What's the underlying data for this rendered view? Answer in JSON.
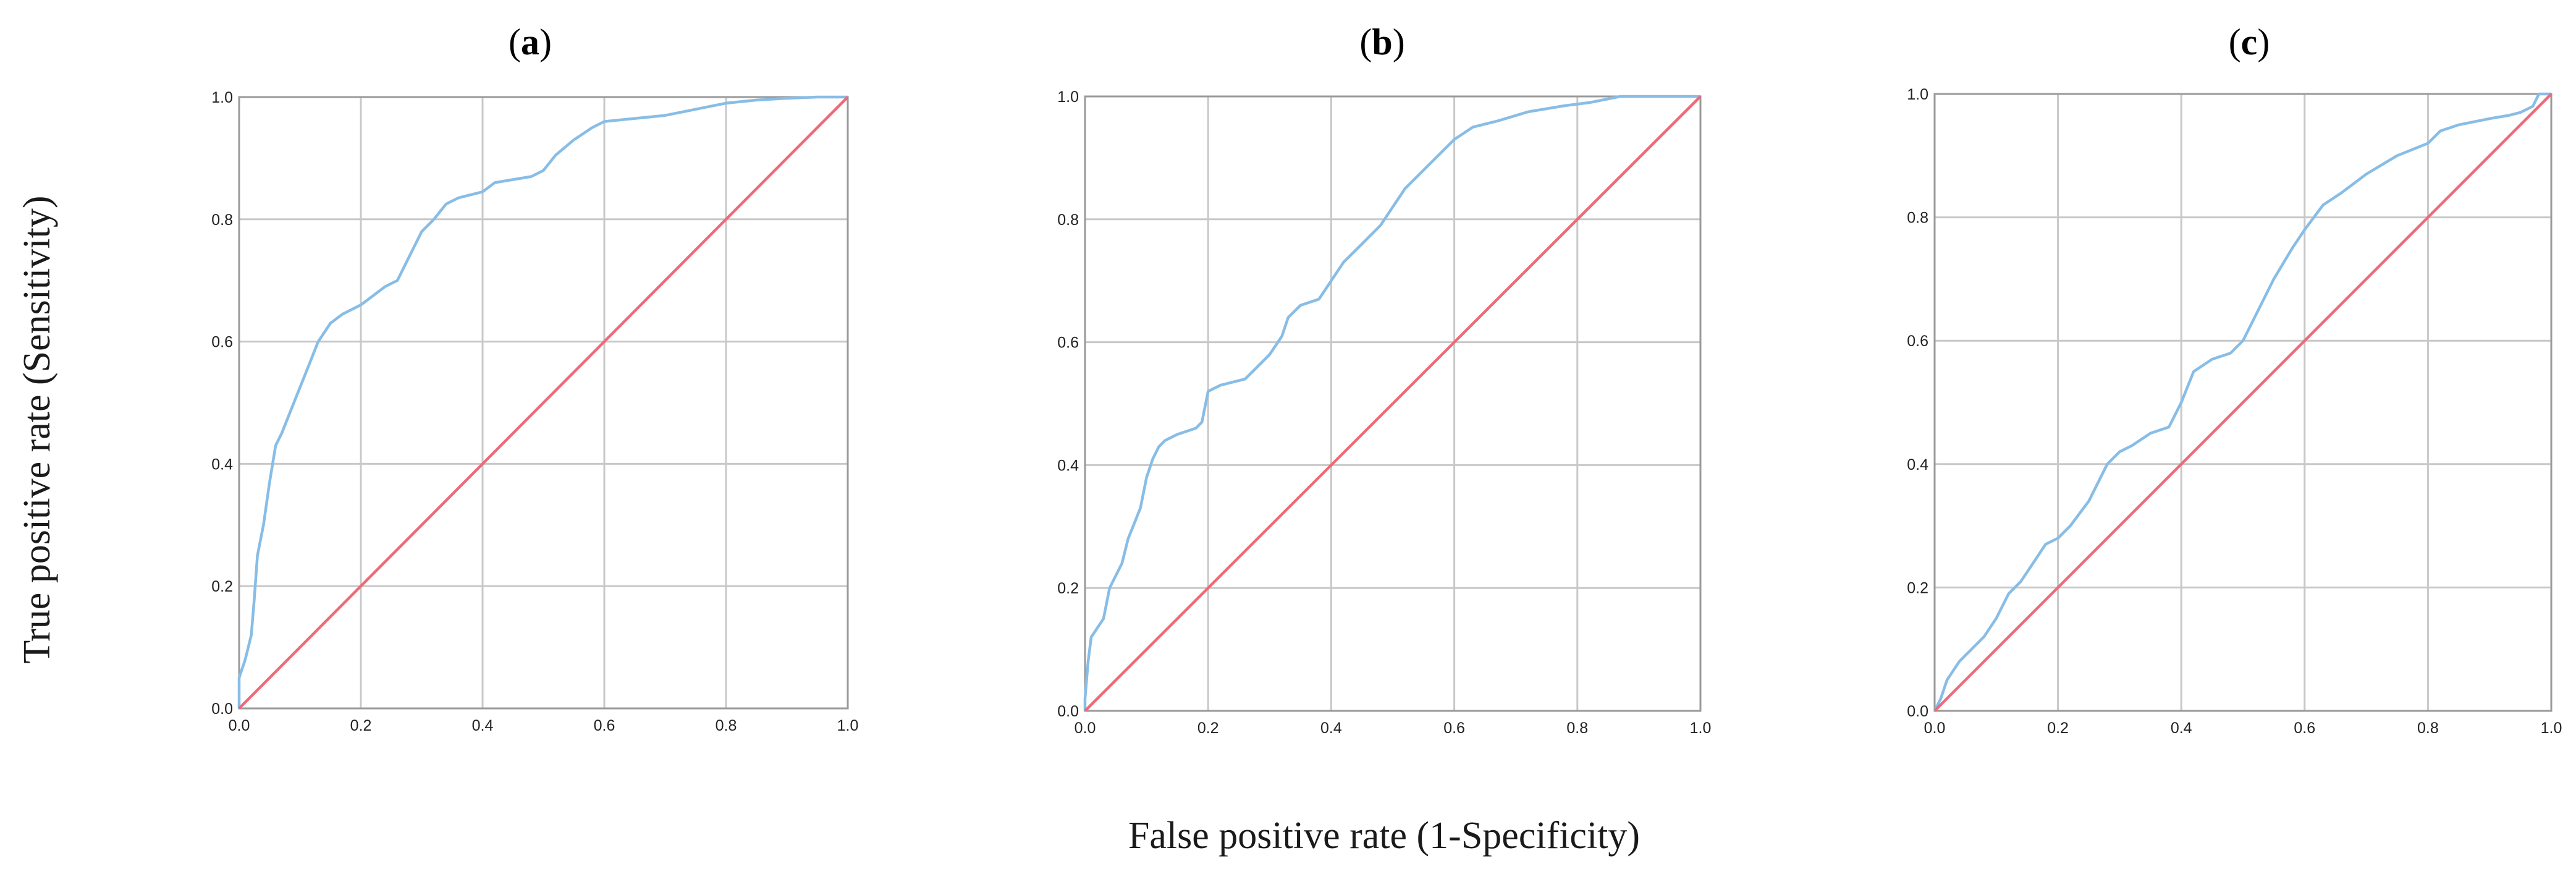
{
  "figure": {
    "x_axis_title": "False positive rate (1-Specificity)",
    "y_axis_title": "True positive rate (Sensitivity)"
  },
  "chart_data": [
    {
      "type": "line",
      "panel": "(a)",
      "title_open": "(",
      "title_letter": "a",
      "title_close": ")",
      "xlabel": "False positive rate (1-Specificity)",
      "ylabel": "True positive rate (Sensitivity)",
      "xlim": [
        0,
        1
      ],
      "ylim": [
        0,
        1
      ],
      "xticks": [
        "0.0",
        "0.2",
        "0.4",
        "0.6",
        "0.8",
        "1.0"
      ],
      "yticks": [
        "0.0",
        "0.2",
        "0.4",
        "0.6",
        "0.8",
        "1.0"
      ],
      "grid": true,
      "series": [
        {
          "name": "ROC curve",
          "color": "#87bde6",
          "x": [
            0,
            0,
            0.01,
            0.02,
            0.025,
            0.03,
            0.04,
            0.05,
            0.06,
            0.07,
            0.09,
            0.11,
            0.13,
            0.15,
            0.17,
            0.2,
            0.22,
            0.24,
            0.26,
            0.28,
            0.3,
            0.32,
            0.34,
            0.36,
            0.38,
            0.4,
            0.42,
            0.45,
            0.48,
            0.5,
            0.52,
            0.55,
            0.58,
            0.6,
            0.65,
            0.7,
            0.75,
            0.8,
            0.85,
            0.9,
            0.95,
            1.0
          ],
          "y": [
            0,
            0.05,
            0.08,
            0.12,
            0.18,
            0.25,
            0.3,
            0.37,
            0.43,
            0.45,
            0.5,
            0.55,
            0.6,
            0.63,
            0.645,
            0.66,
            0.675,
            0.69,
            0.7,
            0.74,
            0.78,
            0.8,
            0.825,
            0.835,
            0.84,
            0.845,
            0.86,
            0.865,
            0.87,
            0.88,
            0.905,
            0.93,
            0.95,
            0.96,
            0.965,
            0.97,
            0.98,
            0.99,
            0.995,
            0.998,
            1.0,
            1.0
          ]
        },
        {
          "name": "Reference line",
          "color": "#ef6a78",
          "x": [
            0,
            1
          ],
          "y": [
            0,
            1
          ]
        }
      ]
    },
    {
      "type": "line",
      "panel": "(b)",
      "title_open": "(",
      "title_letter": "b",
      "title_close": ")",
      "xlabel": "False positive rate (1-Specificity)",
      "ylabel": "True positive rate (Sensitivity)",
      "xlim": [
        0,
        1
      ],
      "ylim": [
        0,
        1
      ],
      "xticks": [
        "0.0",
        "0.2",
        "0.4",
        "0.6",
        "0.8",
        "1.0"
      ],
      "yticks": [
        "0.0",
        "0.2",
        "0.4",
        "0.6",
        "0.8",
        "1.0"
      ],
      "grid": true,
      "series": [
        {
          "name": "ROC curve",
          "color": "#87bde6",
          "x": [
            0,
            0,
            0.005,
            0.01,
            0.03,
            0.04,
            0.06,
            0.07,
            0.09,
            0.1,
            0.11,
            0.12,
            0.13,
            0.15,
            0.18,
            0.19,
            0.2,
            0.22,
            0.26,
            0.28,
            0.3,
            0.32,
            0.33,
            0.35,
            0.38,
            0.4,
            0.42,
            0.45,
            0.48,
            0.5,
            0.52,
            0.55,
            0.58,
            0.6,
            0.63,
            0.67,
            0.72,
            0.78,
            0.82,
            0.87,
            0.92,
            1.0
          ],
          "y": [
            0,
            0.02,
            0.08,
            0.12,
            0.15,
            0.2,
            0.24,
            0.28,
            0.33,
            0.38,
            0.41,
            0.43,
            0.44,
            0.45,
            0.46,
            0.47,
            0.52,
            0.53,
            0.54,
            0.56,
            0.58,
            0.61,
            0.64,
            0.66,
            0.67,
            0.7,
            0.73,
            0.76,
            0.79,
            0.82,
            0.85,
            0.88,
            0.91,
            0.93,
            0.95,
            0.96,
            0.975,
            0.985,
            0.99,
            1.0,
            1.0,
            1.0
          ]
        },
        {
          "name": "Reference line",
          "color": "#ef6a78",
          "x": [
            0,
            1
          ],
          "y": [
            0,
            1
          ]
        }
      ]
    },
    {
      "type": "line",
      "panel": "(c)",
      "title_open": "(",
      "title_letter": "c",
      "title_close": ")",
      "xlabel": "False positive rate (1-Specificity)",
      "ylabel": "True positive rate (Sensitivity)",
      "xlim": [
        0,
        1
      ],
      "ylim": [
        0,
        1
      ],
      "xticks": [
        "0.0",
        "0.2",
        "0.4",
        "0.6",
        "0.8",
        "1.0"
      ],
      "yticks": [
        "0.0",
        "0.2",
        "0.4",
        "0.6",
        "0.8",
        "1.0"
      ],
      "grid": true,
      "series": [
        {
          "name": "ROC curve",
          "color": "#87bde6",
          "x": [
            0,
            0.01,
            0.02,
            0.04,
            0.06,
            0.08,
            0.1,
            0.12,
            0.14,
            0.16,
            0.18,
            0.2,
            0.22,
            0.25,
            0.28,
            0.3,
            0.32,
            0.35,
            0.38,
            0.4,
            0.42,
            0.45,
            0.48,
            0.5,
            0.52,
            0.55,
            0.58,
            0.6,
            0.63,
            0.66,
            0.7,
            0.75,
            0.8,
            0.82,
            0.85,
            0.9,
            0.93,
            0.95,
            0.97,
            0.98,
            1.0
          ],
          "y": [
            0,
            0.02,
            0.05,
            0.08,
            0.1,
            0.12,
            0.15,
            0.19,
            0.21,
            0.24,
            0.27,
            0.28,
            0.3,
            0.34,
            0.4,
            0.42,
            0.43,
            0.45,
            0.46,
            0.5,
            0.55,
            0.57,
            0.58,
            0.6,
            0.64,
            0.7,
            0.75,
            0.78,
            0.82,
            0.84,
            0.87,
            0.9,
            0.92,
            0.94,
            0.95,
            0.96,
            0.965,
            0.97,
            0.98,
            1.0,
            1.0
          ]
        },
        {
          "name": "Reference line",
          "color": "#ef6a78",
          "x": [
            0,
            1
          ],
          "y": [
            0,
            1
          ]
        }
      ]
    }
  ]
}
